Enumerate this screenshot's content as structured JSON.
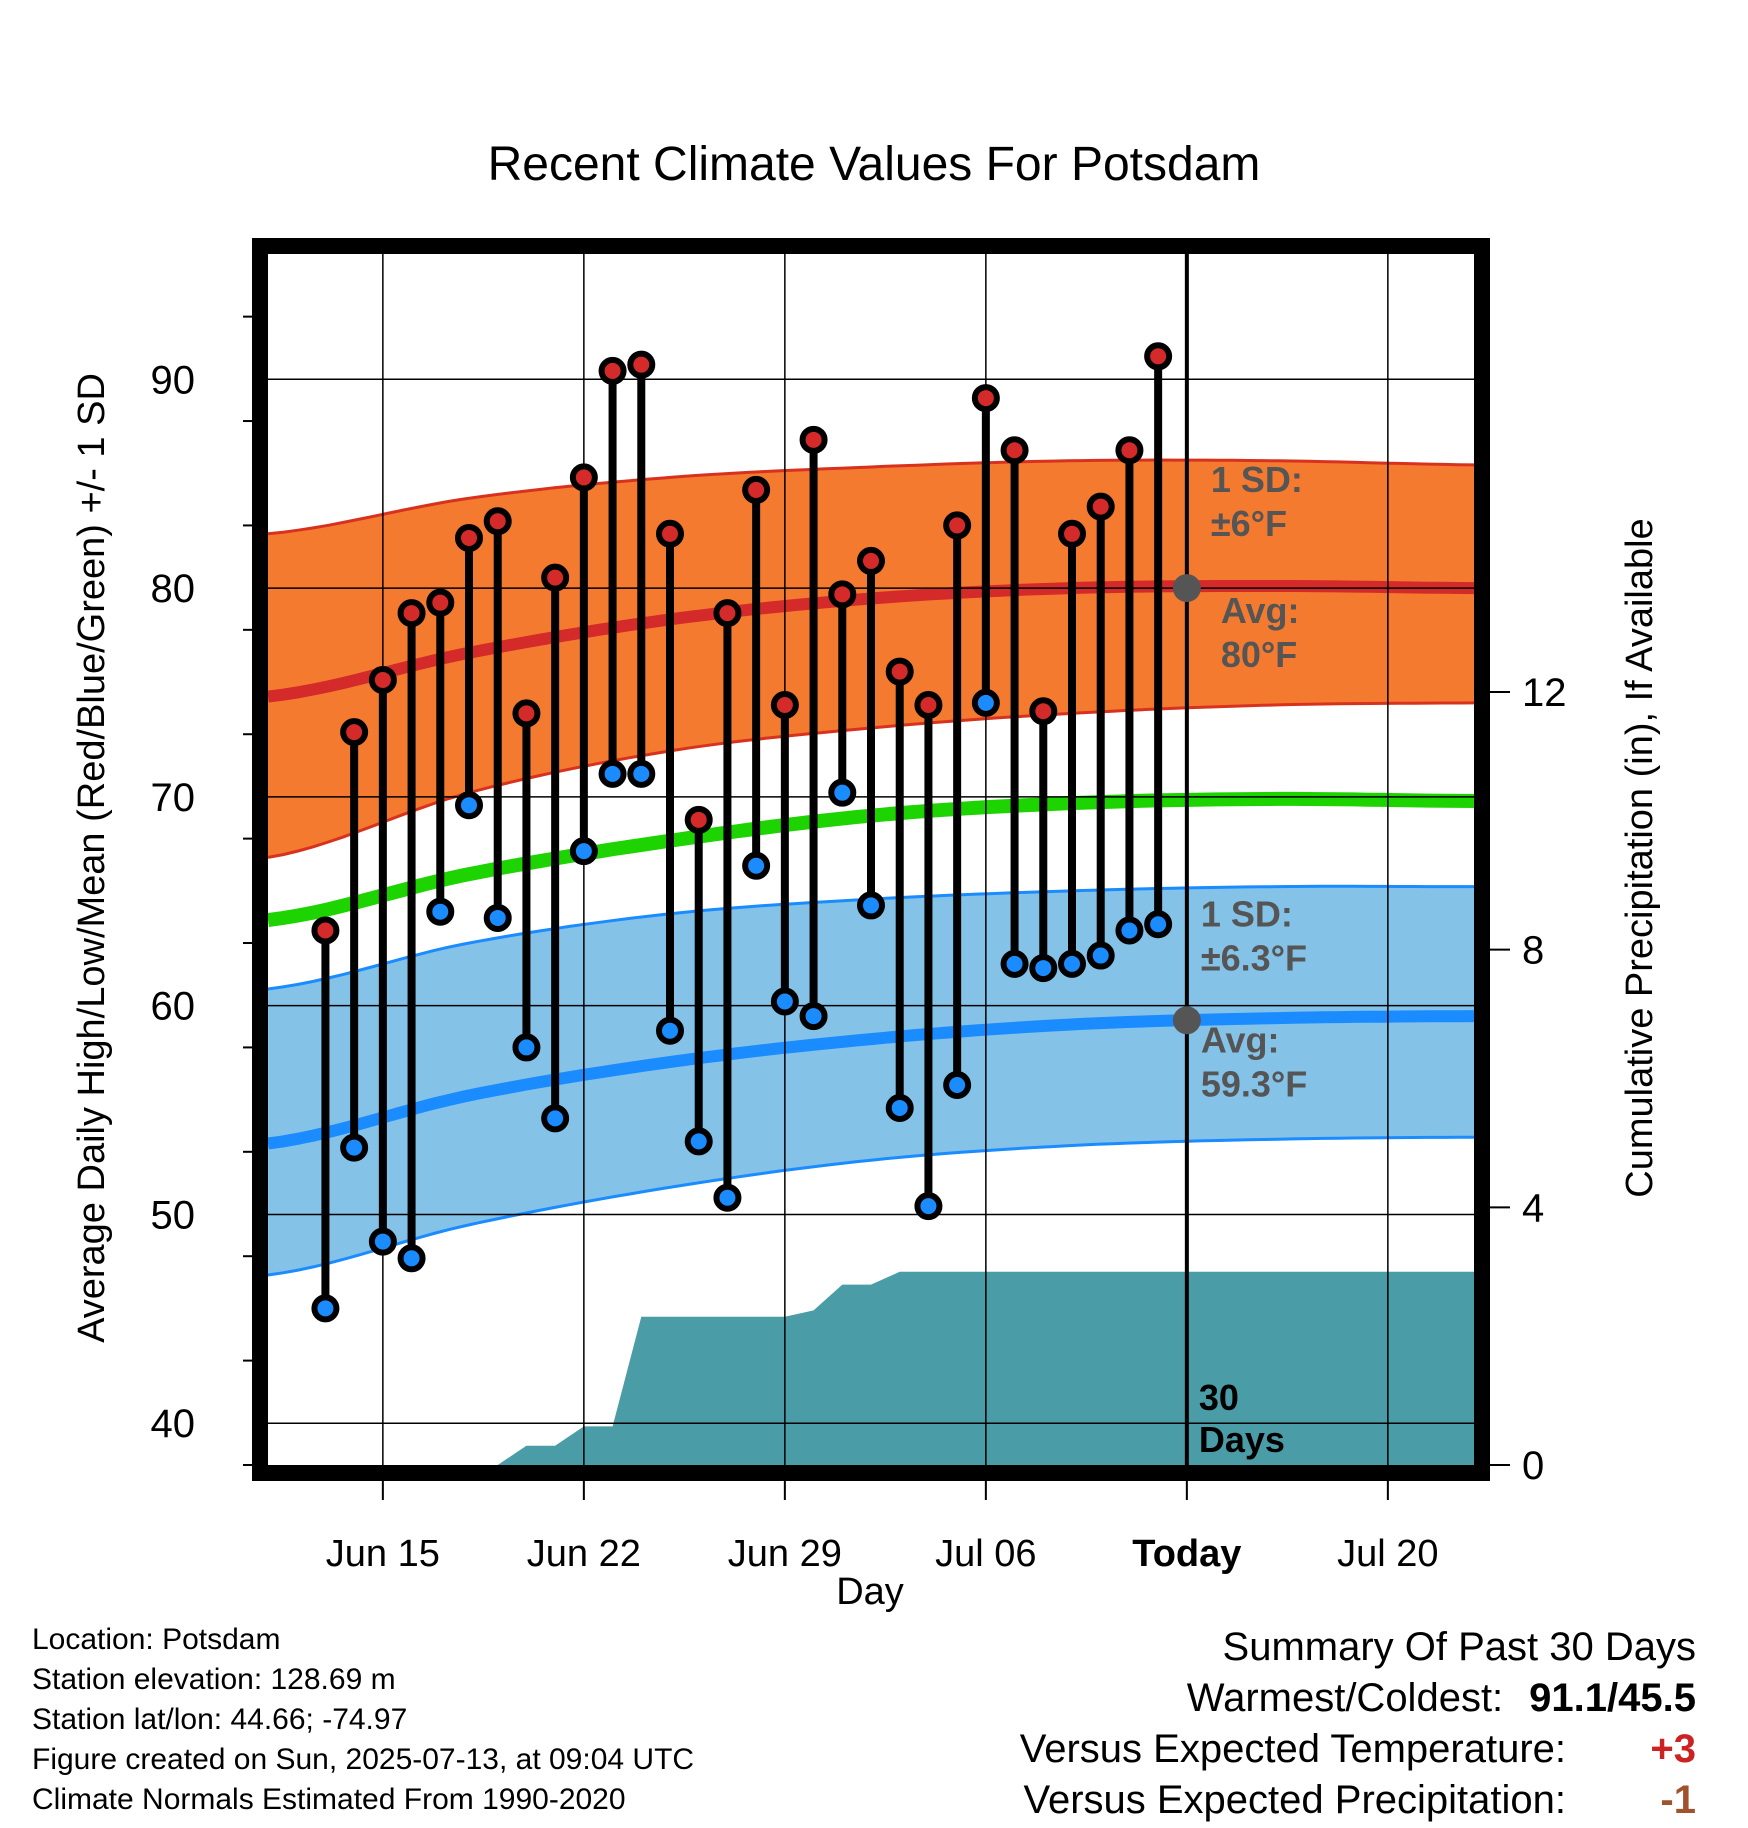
{
  "chart_data": {
    "type": "line",
    "title": "Recent Climate Values For Potsdam",
    "xlabel": "Day",
    "ylabel": "Average Daily High/Low/Mean (Red/Blue/Green) +/- 1 SD",
    "y2label": "Cumulative Precipitation (in), If Available",
    "ylim": [
      38,
      96
    ],
    "y_ticks": [
      "40",
      "50",
      "60",
      "70",
      "80",
      "90"
    ],
    "y2lim": [
      0,
      18.8
    ],
    "y2_ticks": [
      "0",
      "4",
      "8",
      "12"
    ],
    "x_range": [
      "2025-06-11",
      "2025-07-23"
    ],
    "x_ticks": [
      {
        "date": "2025-06-15",
        "label": "Jun 15"
      },
      {
        "date": "2025-06-22",
        "label": "Jun 22"
      },
      {
        "date": "2025-06-29",
        "label": "Jun 29"
      },
      {
        "date": "2025-07-06",
        "label": "Jul 06"
      },
      {
        "date": "2025-07-13",
        "label": "Today"
      },
      {
        "date": "2025-07-20",
        "label": "Jul 20"
      }
    ],
    "grid": true,
    "today": "2025-07-13",
    "window_label_1": "30",
    "window_label_2": "Days",
    "daily": {
      "dates": [
        "2025-06-13",
        "2025-06-14",
        "2025-06-15",
        "2025-06-16",
        "2025-06-17",
        "2025-06-18",
        "2025-06-19",
        "2025-06-20",
        "2025-06-21",
        "2025-06-22",
        "2025-06-23",
        "2025-06-24",
        "2025-06-25",
        "2025-06-26",
        "2025-06-27",
        "2025-06-28",
        "2025-06-29",
        "2025-06-30",
        "2025-07-01",
        "2025-07-02",
        "2025-07-03",
        "2025-07-04",
        "2025-07-05",
        "2025-07-06",
        "2025-07-07",
        "2025-07-08",
        "2025-07-09",
        "2025-07-10",
        "2025-07-11",
        "2025-07-12"
      ],
      "highs": [
        63.6,
        73.1,
        75.6,
        78.8,
        79.3,
        82.4,
        83.2,
        74.0,
        80.5,
        85.3,
        90.4,
        90.7,
        82.6,
        68.9,
        78.8,
        84.7,
        74.4,
        87.1,
        79.7,
        81.3,
        76.0,
        74.4,
        83.0,
        89.1,
        86.6,
        74.1,
        82.6,
        83.9,
        86.6,
        91.1
      ],
      "lows": [
        45.5,
        53.2,
        48.7,
        47.9,
        64.5,
        69.6,
        64.2,
        58.0,
        54.6,
        67.4,
        71.1,
        71.1,
        58.8,
        53.5,
        50.8,
        66.7,
        60.2,
        59.5,
        70.2,
        64.8,
        55.1,
        50.4,
        56.2,
        74.5,
        62.0,
        61.8,
        62.0,
        62.4,
        63.6,
        63.9
      ]
    },
    "normals": {
      "dates": [
        "2025-06-11",
        "2025-06-18",
        "2025-06-25",
        "2025-07-02",
        "2025-07-09",
        "2025-07-16",
        "2025-07-23"
      ],
      "high_avg": [
        74.8,
        76.9,
        78.5,
        79.5,
        80.0,
        80.1,
        80.0
      ],
      "high_upper": [
        82.6,
        84.3,
        85.3,
        85.8,
        86.1,
        86.1,
        85.9
      ],
      "high_lower": [
        67.1,
        70.2,
        72.2,
        73.3,
        74.0,
        74.4,
        74.5
      ],
      "mean_avg": [
        64.1,
        66.3,
        67.9,
        69.1,
        69.7,
        69.9,
        69.8
      ],
      "low_avg": [
        53.4,
        55.7,
        57.3,
        58.4,
        59.1,
        59.4,
        59.5
      ],
      "low_upper": [
        60.8,
        63.0,
        64.4,
        65.1,
        65.5,
        65.7,
        65.7
      ],
      "low_lower": [
        47.1,
        49.5,
        51.3,
        52.6,
        53.3,
        53.6,
        53.7
      ]
    },
    "today_markers": [
      {
        "series": "high",
        "value": 80,
        "sd_label": "1 SD:",
        "sd_value": "±6°F",
        "avg_label": "Avg:",
        "avg_value": "80°F"
      },
      {
        "series": "low",
        "value": 59.3,
        "sd_label": "1 SD:",
        "sd_value": "±6.3°F",
        "avg_label": "Avg:",
        "avg_value": "59.3°F"
      }
    ],
    "precip": {
      "dates": [
        "2025-06-11",
        "2025-06-18",
        "2025-06-19",
        "2025-06-20",
        "2025-06-21",
        "2025-06-22",
        "2025-06-23",
        "2025-06-24",
        "2025-06-25",
        "2025-06-26",
        "2025-06-27",
        "2025-06-28",
        "2025-06-29",
        "2025-06-30",
        "2025-07-01",
        "2025-07-02",
        "2025-07-03",
        "2025-07-04",
        "2025-07-05",
        "2025-07-06",
        "2025-07-07",
        "2025-07-08",
        "2025-07-09",
        "2025-07-10",
        "2025-07-11",
        "2025-07-12",
        "2025-07-23"
      ],
      "cumulative": [
        0.0,
        0.0,
        0.0,
        0.3,
        0.3,
        0.6,
        0.6,
        2.3,
        2.3,
        2.3,
        2.3,
        2.3,
        2.3,
        2.4,
        2.8,
        2.8,
        3.0,
        3.0,
        3.0,
        3.0,
        3.0,
        3.0,
        3.0,
        3.0,
        3.0,
        3.0,
        3.0
      ]
    },
    "colors": {
      "high_band": "#f47a30",
      "high_line": "#d42a2a",
      "mean_line": "#1ed400",
      "low_band": "#85c2e8",
      "low_line": "#1a8cff",
      "precip": "#4a9ca6",
      "high_dot": "#d42a2a",
      "low_dot": "#1a8cff",
      "marker": "#555555"
    }
  },
  "info": {
    "location": "Location: Potsdam",
    "elevation": "Station elevation: 128.69 m",
    "latlon": "Station lat/lon: 44.66; -74.97",
    "created": "Figure created on Sun, 2025-07-13, at 09:04 UTC",
    "normals": "Climate Normals Estimated From 1990-2020"
  },
  "summary": {
    "title": "Summary Of Past 30 Days",
    "warm_label": "Warmest/Coldest:",
    "warm_value": "91.1/45.5",
    "temp_label": "Versus Expected Temperature:",
    "temp_value": "+3",
    "temp_color": "#cc2222",
    "precip_label": "Versus Expected Precipitation:",
    "precip_value": "-1",
    "precip_color": "#a0522d"
  }
}
